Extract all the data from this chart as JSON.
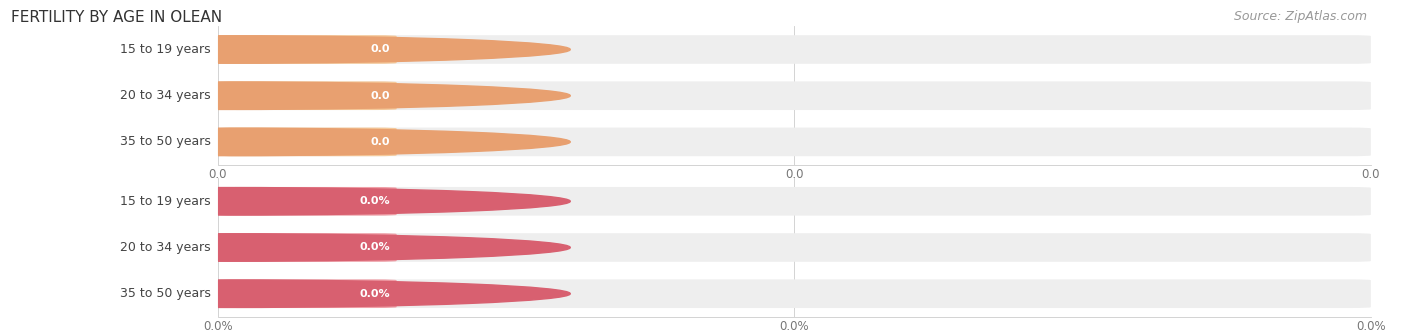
{
  "title": "FERTILITY BY AGE IN OLEAN",
  "source_text": "Source: ZipAtlas.com",
  "sections": [
    {
      "categories": [
        "15 to 19 years",
        "20 to 34 years",
        "35 to 50 years"
      ],
      "values": [
        0.0,
        0.0,
        0.0
      ],
      "bar_color": "#f5c99a",
      "circle_color": "#e8a070",
      "value_suffix": "",
      "x_tick_labels": [
        "0.0",
        "0.0",
        "0.0"
      ]
    },
    {
      "categories": [
        "15 to 19 years",
        "20 to 34 years",
        "35 to 50 years"
      ],
      "values": [
        0.0,
        0.0,
        0.0
      ],
      "bar_color": "#f0a0a8",
      "circle_color": "#d86070",
      "value_suffix": "%",
      "x_tick_labels": [
        "0.0%",
        "0.0%",
        "0.0%"
      ]
    }
  ],
  "background_color": "#ffffff",
  "bar_bg_color": "#eeeeee",
  "title_fontsize": 11,
  "label_fontsize": 9,
  "value_fontsize": 8,
  "tick_fontsize": 8.5,
  "source_fontsize": 9
}
